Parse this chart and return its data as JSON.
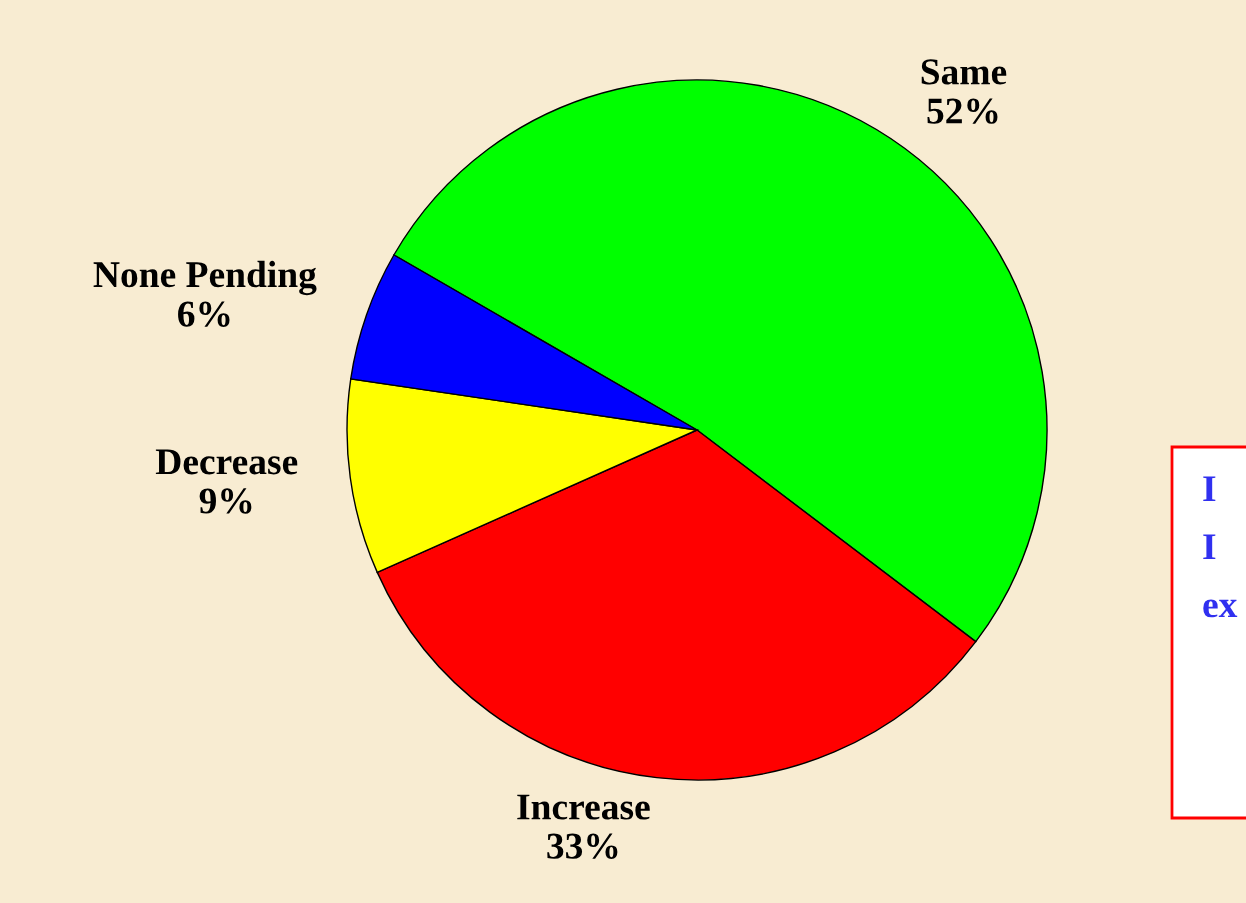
{
  "chart_data": {
    "type": "pie",
    "categories": [
      "Same",
      "Increase",
      "Decrease",
      "None Pending"
    ],
    "values": [
      52,
      33,
      9,
      6
    ],
    "colors": [
      "#00ff00",
      "#ff0000",
      "#ffff00",
      "#0000ff"
    ],
    "value_labels": [
      "52%",
      "33%",
      "9%",
      "6%"
    ],
    "annotations": [
      "I",
      "I",
      "ex"
    ]
  }
}
